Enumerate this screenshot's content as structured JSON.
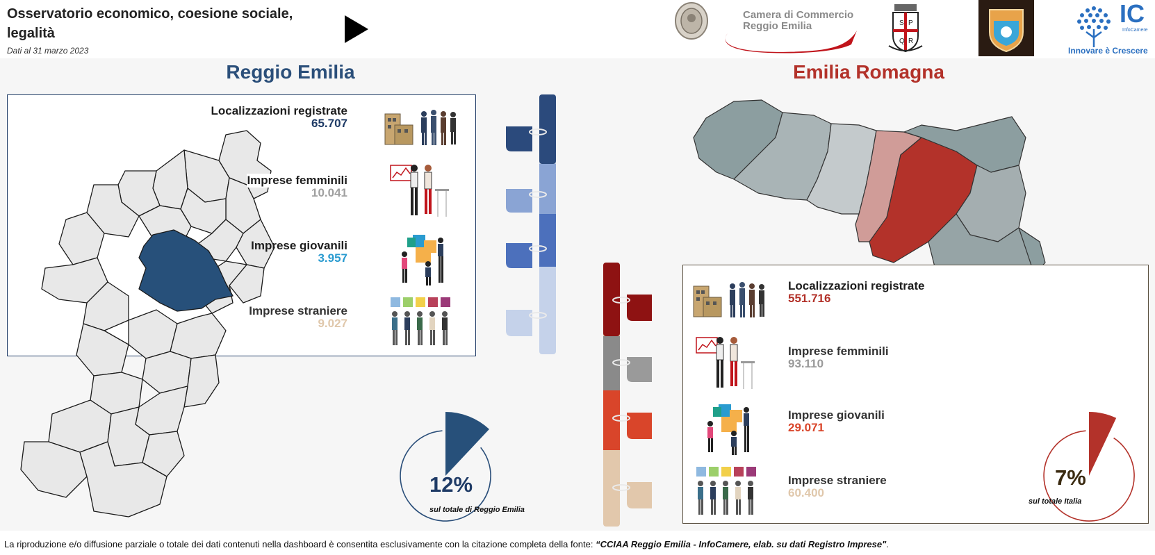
{
  "header": {
    "title": "Osservatorio economico, coesione sociale, legalità",
    "subtitle": "Dati al 31 marzo 2023",
    "logos": {
      "chamber_line1": "Camera di Commercio",
      "chamber_line2": "Reggio Emilia",
      "spqr": "SPQR",
      "infocamere_short": "IC",
      "infocamere_name": "InfoCamere",
      "infocamere_tagline": "Innovare è Crescere"
    }
  },
  "reggio": {
    "heading": "Reggio Emilia",
    "stats": [
      {
        "label": "Localizzazioni registrate",
        "value": "65.707",
        "color": "#1f3b66"
      },
      {
        "label": "Imprese femminili",
        "value": "10.041",
        "color": "#a0a0a0"
      },
      {
        "label": "Imprese giovanili",
        "value": "3.957",
        "color": "#2a9bd0"
      },
      {
        "label": "Imprese straniere",
        "value": "9.027",
        "color": "#e0c8ac"
      }
    ],
    "share_value": "12%",
    "share_fraction": 0.12,
    "share_caption": "sul totale di Reggio Emilia",
    "accent": "#2b4f7a"
  },
  "emilia": {
    "heading": "Emilia Romagna",
    "stats": [
      {
        "label": "Localizzazioni registrate",
        "value": "551.716",
        "color": "#b3322a"
      },
      {
        "label": "Imprese femminili",
        "value": "93.110",
        "color": "#9a9a9a"
      },
      {
        "label": "Imprese giovanili",
        "value": "29.071",
        "color": "#d9452a"
      },
      {
        "label": "Imprese straniere",
        "value": "60.400",
        "color": "#e0c8ac"
      }
    ],
    "share_value": "7%",
    "share_fraction": 0.07,
    "share_caption": "sul totale Italia",
    "accent": "#b3322a"
  },
  "footer": {
    "text": "La riproduzione e/o diffusione parziale o totale dei dati contenuti nella dashboard è consentita esclusivamente con la citazione completa della fonte: ",
    "source": "“CCIAA Reggio Emilia - InfoCamere, elab. su dati Registro Imprese\"",
    "end": "."
  }
}
